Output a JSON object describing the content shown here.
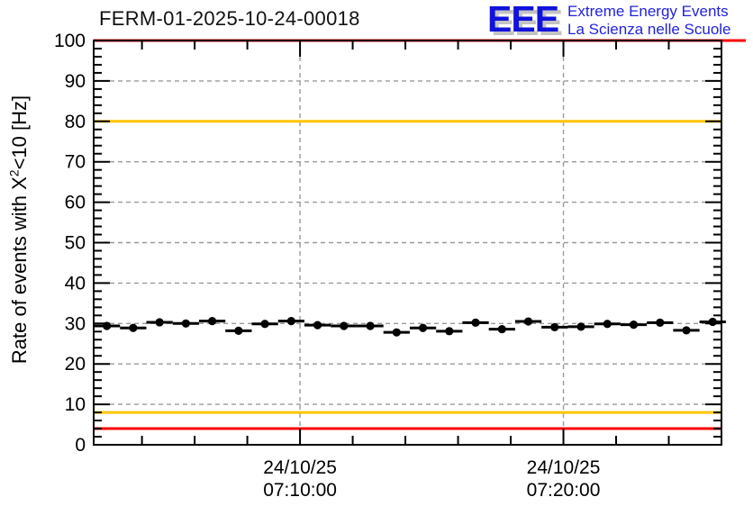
{
  "header": {
    "title": "FERM-01-2025-10-24-00018",
    "logo": {
      "acronym": "EEE",
      "line1": "Extreme Energy Events",
      "line2": "La Scienza nelle Scuole"
    }
  },
  "chart_data": {
    "type": "scatter",
    "title": "FERM-01-2025-10-24-00018",
    "ylabel": "Rate of events with X²<10 [Hz]",
    "ylabel_parts": {
      "pre": "Rate of events with X",
      "sup": "2",
      "post": "<10 [Hz]"
    },
    "ylim": [
      0,
      100
    ],
    "y_major_step": 10,
    "y_minor_step": 2,
    "y_tick_labels": [
      "0",
      "10",
      "20",
      "30",
      "40",
      "50",
      "60",
      "70",
      "80",
      "90",
      "100"
    ],
    "x_window": {
      "date": "24/10/25",
      "start": "07:02:10",
      "end": "07:26:00"
    },
    "x_minor_ticks": [
      "07:04:00",
      "07:06:00",
      "07:08:00",
      "07:12:00",
      "07:14:00",
      "07:16:00",
      "07:18:00",
      "07:22:00",
      "07:24:00",
      "07:26:00"
    ],
    "x_major_ticks": [
      {
        "date": "24/10/25",
        "time": "07:10:00"
      },
      {
        "date": "24/10/25",
        "time": "07:20:00"
      }
    ],
    "grid": {
      "horizontal_at": [
        10,
        20,
        30,
        40,
        50,
        60,
        70,
        80,
        90
      ],
      "vertical_at": [
        "07:10:00",
        "07:20:00"
      ],
      "on": true
    },
    "points": {
      "times": [
        "07:02:40",
        "07:03:40",
        "07:04:40",
        "07:05:40",
        "07:06:40",
        "07:07:40",
        "07:08:40",
        "07:09:40",
        "07:10:40",
        "07:11:40",
        "07:12:40",
        "07:13:40",
        "07:14:40",
        "07:15:40",
        "07:16:40",
        "07:17:40",
        "07:18:40",
        "07:19:40",
        "07:20:40",
        "07:21:40",
        "07:22:40",
        "07:23:40",
        "07:24:40",
        "07:25:40"
      ],
      "values": [
        29.4,
        28.9,
        30.3,
        30.0,
        30.6,
        28.2,
        29.9,
        30.6,
        29.6,
        29.4,
        29.4,
        27.8,
        28.9,
        28.1,
        30.2,
        28.6,
        30.5,
        29.1,
        29.2,
        29.9,
        29.7,
        30.2,
        28.3,
        30.4
      ],
      "x_error_minutes": 0.5,
      "y_error_hz": 0.7
    },
    "threshold_lines": [
      {
        "value": 100,
        "color": "#ff0000"
      },
      {
        "value": 80,
        "color": "#ffc400"
      },
      {
        "value": 8,
        "color": "#ffc400"
      },
      {
        "value": 4,
        "color": "#ff0000"
      }
    ],
    "colors": {
      "marker": "#000000",
      "axis": "#000000",
      "grid": "#9a9a9a",
      "alarm_red": "#ff0000",
      "warning_yellow": "#ffc400"
    },
    "legend_position": "none"
  }
}
